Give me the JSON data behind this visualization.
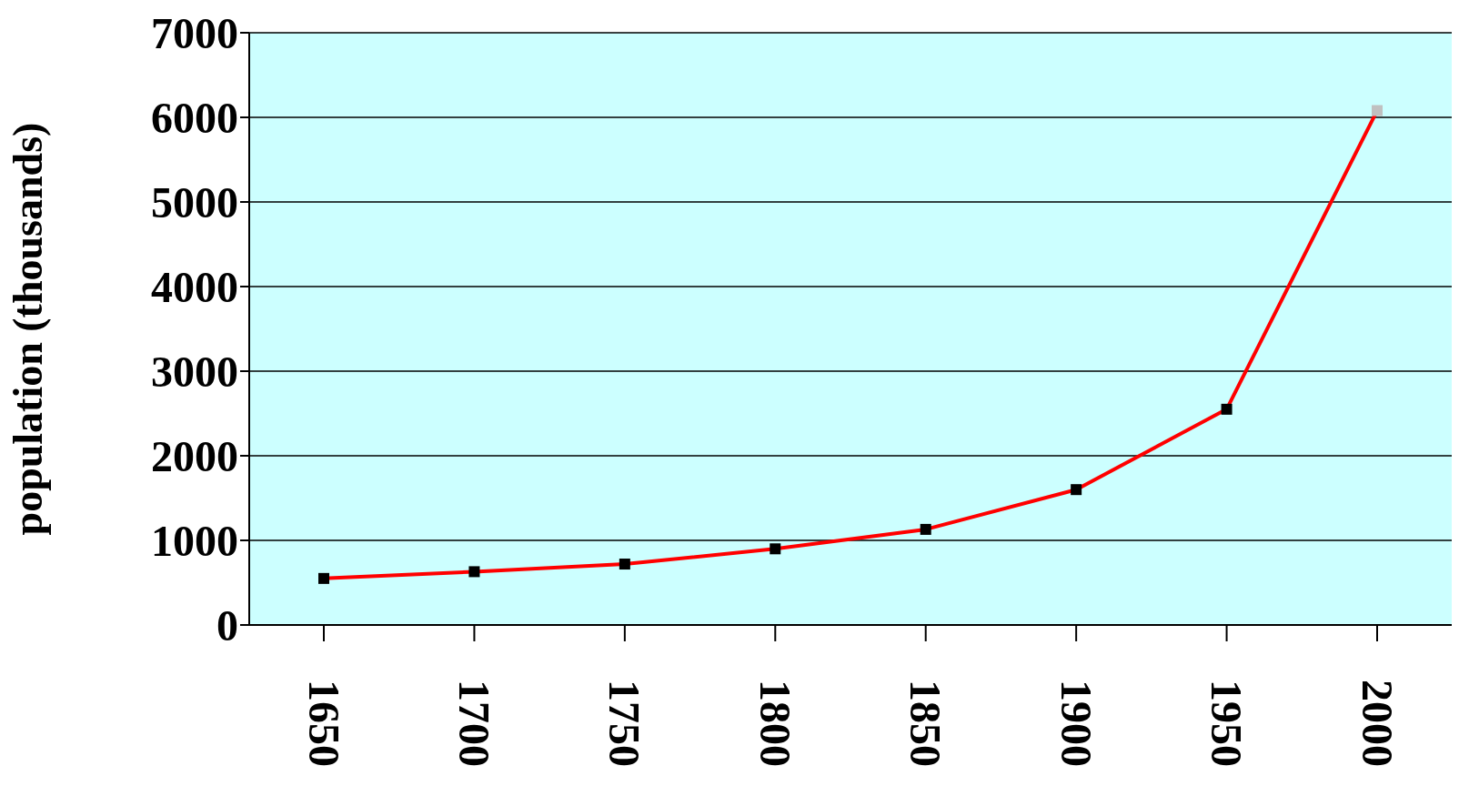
{
  "chart_data": {
    "type": "line",
    "ylabel": "population (thousands)",
    "categories": [
      "1650",
      "1700",
      "1750",
      "1800",
      "1850",
      "1900",
      "1950",
      "2000"
    ],
    "series": [
      {
        "color": "#ff0000",
        "colors": [
          "#000000",
          "#000000",
          "#000000",
          "#000000",
          "#000000",
          "#000000",
          "#000000",
          "#c0c0c0"
        ],
        "values": [
          550,
          630,
          720,
          900,
          1130,
          1600,
          2550,
          6080
        ]
      }
    ],
    "ylim": [
      0,
      7000
    ],
    "yticks": [
      0,
      1000,
      2000,
      3000,
      4000,
      5000,
      6000,
      7000
    ],
    "grid": "y",
    "marker": "square",
    "line_style": "solid"
  }
}
